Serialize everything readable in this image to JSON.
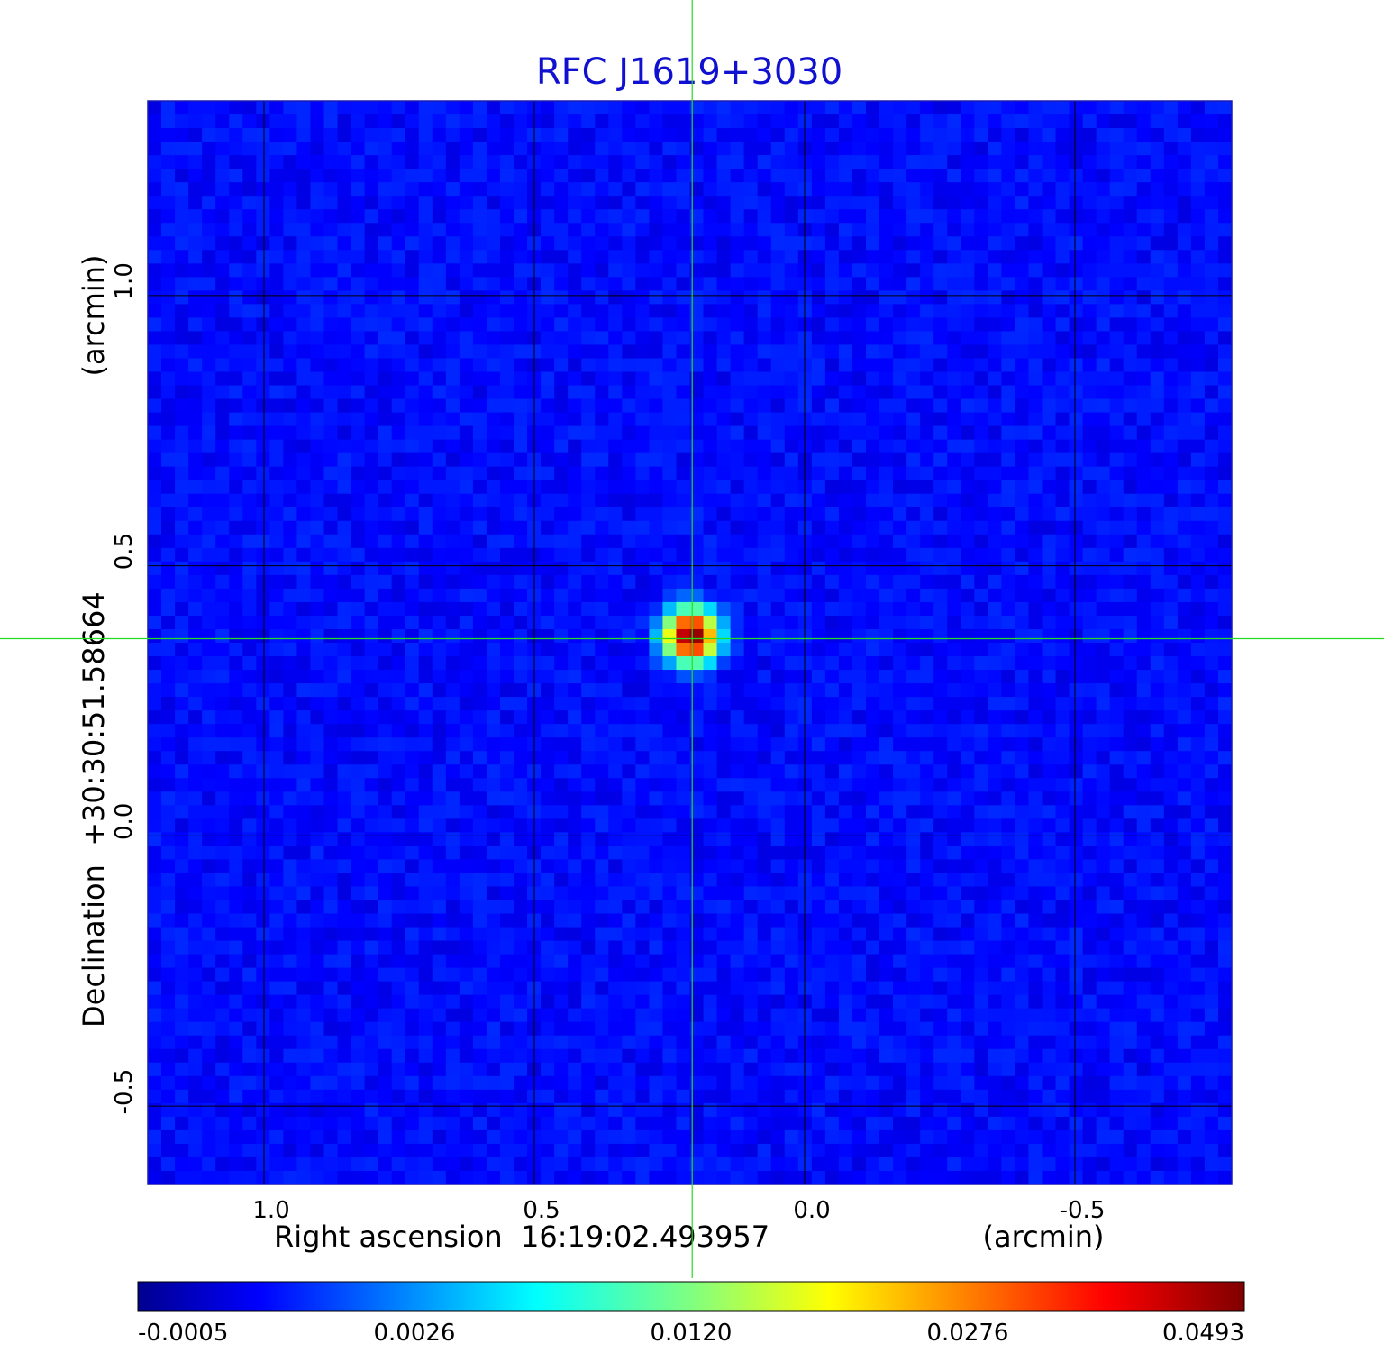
{
  "chart_data": {
    "type": "heatmap",
    "title": "RFC J1619+3030",
    "title_color": "#1010d0",
    "xlabel": "Right ascension  16:19:02.493957",
    "xunit": "(arcmin)",
    "ylabel": "Declination  +30:30:51.58664",
    "yunit": "(arcmin)",
    "xlim": [
      1.215,
      -0.79
    ],
    "ylim": [
      -0.645,
      1.36
    ],
    "x_ticks": [
      1.0,
      0.5,
      0.0,
      -0.5
    ],
    "x_tick_labels": [
      "1.0",
      "0.5",
      "0.0",
      "-0.5"
    ],
    "y_ticks": [
      1.0,
      0.5,
      0.0,
      -0.5
    ],
    "y_tick_labels": [
      "1.0",
      "0.5",
      "0.0",
      "-0.5"
    ],
    "grid": true,
    "colormap": "jet",
    "background_level": 0.0004,
    "source": {
      "x": 0.21,
      "y": 0.37,
      "peak": 0.0493
    },
    "crosshair": {
      "x": 0.208,
      "y": 0.365,
      "color": "#22dd22"
    },
    "colorbar": {
      "orientation": "horizontal",
      "tick_labels": [
        "-0.0005",
        "0.0026",
        "0.0120",
        "0.0276",
        "0.0493"
      ],
      "min": -0.0005,
      "max": 0.0493
    }
  }
}
